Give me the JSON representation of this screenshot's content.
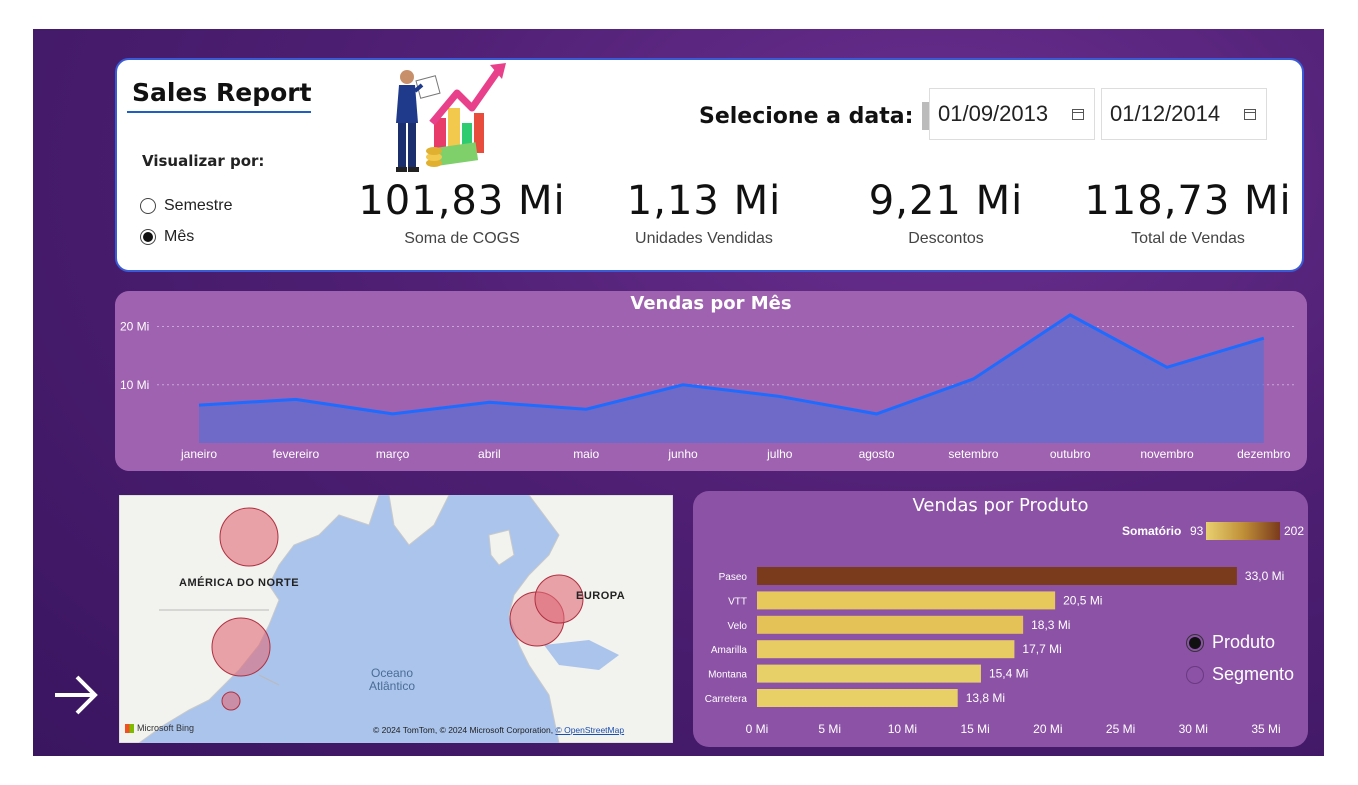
{
  "header": {
    "title": "Sales Report",
    "visualize_label": "Visualizar por:",
    "view_options": [
      {
        "label": "Semestre",
        "selected": false
      },
      {
        "label": "Mês",
        "selected": true
      }
    ],
    "date_label": "Selecione a data:",
    "date_start": "01/09/2013",
    "date_end": "01/12/2014"
  },
  "kpis": [
    {
      "value": "101,83 Mi",
      "label": "Soma de COGS"
    },
    {
      "value": "1,13 Mi",
      "label": "Unidades Vendidas"
    },
    {
      "value": "9,21 Mi",
      "label": "Descontos"
    },
    {
      "value": "118,73 Mi",
      "label": "Total de Vendas"
    }
  ],
  "line_chart": {
    "title": "Vendas por Mês",
    "y_ticks": [
      "20 Mi",
      "10 Mi"
    ],
    "line_color": "#1e6bff"
  },
  "map": {
    "label_na": "AMÉRICA DO NORTE",
    "label_eu": "EUROPA",
    "ocean_line1": "Oceano",
    "ocean_line2": "Atlântico",
    "attribution": "© 2024 TomTom, © 2024 Microsoft Corporation, ",
    "attribution_link": "© OpenStreetMap",
    "provider": "Microsoft Bing"
  },
  "bar_chart_meta": {
    "title": "Vendas por Produto",
    "legend_title": "Somatório",
    "legend_min": "93",
    "legend_max": "202",
    "x_ticks": [
      "0 Mi",
      "5 Mi",
      "10 Mi",
      "15 Mi",
      "20 Mi",
      "25 Mi",
      "30 Mi",
      "35 Mi"
    ],
    "data_labels": [
      "33,0 Mi",
      "20,5 Mi",
      "18,3 Mi",
      "17,7 Mi",
      "15,4 Mi",
      "13,8 Mi"
    ]
  },
  "side_options": [
    {
      "label": "Produto",
      "selected": true
    },
    {
      "label": "Segmento",
      "selected": false
    }
  ],
  "chart_data": [
    {
      "type": "area",
      "title": "Vendas por Mês",
      "categories": [
        "janeiro",
        "fevereiro",
        "março",
        "abril",
        "maio",
        "junho",
        "julho",
        "agosto",
        "setembro",
        "outubro",
        "novembro",
        "dezembro"
      ],
      "values": [
        6.5,
        7.5,
        5.0,
        7.0,
        5.8,
        10.0,
        8.0,
        5.0,
        11.0,
        22.0,
        13.0,
        18.0
      ],
      "ylim": [
        0,
        25
      ],
      "y_unit": "Mi",
      "grid": true
    },
    {
      "type": "bar",
      "orientation": "horizontal",
      "title": "Vendas por Produto",
      "categories": [
        "Paseo",
        "VTT",
        "Velo",
        "Amarilla",
        "Montana",
        "Carretera"
      ],
      "values": [
        33.0,
        20.5,
        18.3,
        17.7,
        15.4,
        13.8
      ],
      "xlim": [
        0,
        35
      ],
      "x_unit": "Mi",
      "bar_colors": [
        "#7a3a1c",
        "#e6c95a",
        "#e4c258",
        "#e6cc62",
        "#e8d068",
        "#e8cf66"
      ],
      "legend_placement": "top-right"
    }
  ]
}
